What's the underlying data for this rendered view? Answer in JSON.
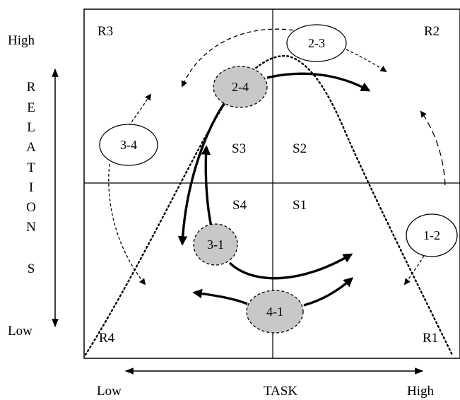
{
  "y_axis": {
    "high_label": "High",
    "low_label": "Low",
    "title_letters": [
      "R",
      "E",
      "L",
      "A",
      "T",
      "I",
      "O",
      "N",
      "S"
    ]
  },
  "x_axis": {
    "low_label": "Low",
    "high_label": "High",
    "title": "TASK"
  },
  "regions": {
    "r1": "R1",
    "r2": "R2",
    "r3": "R3",
    "r4": "R4"
  },
  "styles": {
    "s1": "S1",
    "s2": "S2",
    "s3": "S3",
    "s4": "S4"
  },
  "transitions": {
    "t_1_2": "1-2",
    "t_2_3": "2-3",
    "t_2_4": "2-4",
    "t_3_4": "3-4",
    "t_3_1": "3-1",
    "t_4_1": "4-1"
  },
  "colors": {
    "line": "#000000",
    "shaded_node": "#c8c8c8",
    "plain_node": "#ffffff"
  }
}
